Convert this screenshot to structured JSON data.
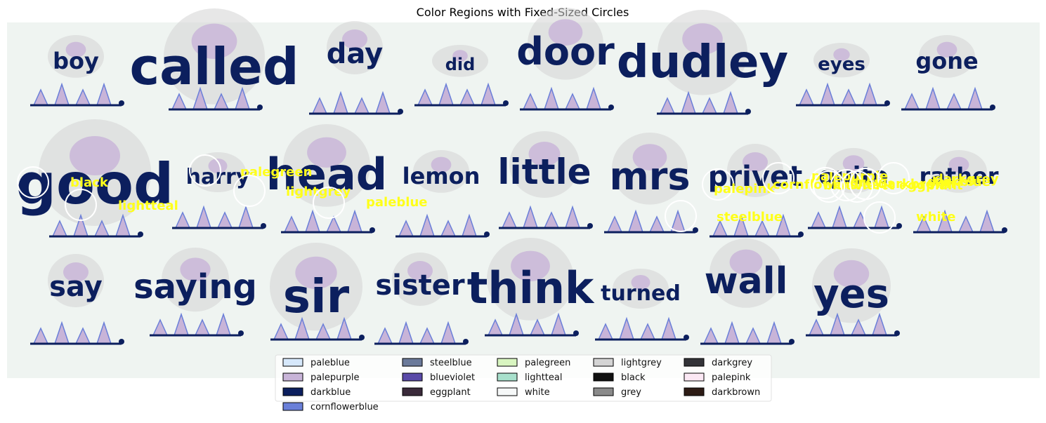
{
  "chart_data": {
    "type": "image-annotation",
    "title": "Color Regions with Fixed-Sized Circles",
    "words": [
      {
        "text": "boy",
        "row": 0
      },
      {
        "text": "called",
        "row": 0
      },
      {
        "text": "day",
        "row": 0
      },
      {
        "text": "did",
        "row": 0
      },
      {
        "text": "door",
        "row": 0
      },
      {
        "text": "dudley",
        "row": 0
      },
      {
        "text": "eyes",
        "row": 0
      },
      {
        "text": "gone",
        "row": 0
      },
      {
        "text": "good",
        "row": 1
      },
      {
        "text": "harry",
        "row": 1
      },
      {
        "text": "head",
        "row": 1
      },
      {
        "text": "lemon",
        "row": 1
      },
      {
        "text": "little",
        "row": 1
      },
      {
        "text": "mrs",
        "row": 1
      },
      {
        "text": "privet",
        "row": 1
      },
      {
        "text": "quite",
        "row": 1
      },
      {
        "text": "rather",
        "row": 1
      },
      {
        "text": "say",
        "row": 2
      },
      {
        "text": "saying",
        "row": 2
      },
      {
        "text": "sir",
        "row": 2
      },
      {
        "text": "sister",
        "row": 2
      },
      {
        "text": "think",
        "row": 2
      },
      {
        "text": "turned",
        "row": 2
      },
      {
        "text": "wall",
        "row": 2
      },
      {
        "text": "yes",
        "row": 2
      }
    ],
    "circle_labels": [
      "black",
      "lightteal",
      "palegreen",
      "lightgrey",
      "paleblue",
      "palepink",
      "cornflowerblue",
      "steelblue",
      "palepurple",
      "blueviolet",
      "eggplant",
      "darkblue",
      "darkgrey",
      "grey",
      "darkbrown",
      "white"
    ],
    "legend": {
      "columns": [
        [
          "paleblue",
          "palepurple",
          "darkblue",
          "cornflowerblue"
        ],
        [
          "steelblue",
          "blueviolet",
          "eggplant"
        ],
        [
          "palegreen",
          "lightteal",
          "white"
        ],
        [
          "lightgrey",
          "black",
          "grey"
        ],
        [
          "darkgrey",
          "palepink",
          "darkbrown"
        ]
      ],
      "colors": {
        "paleblue": "#d6e8fb",
        "palepurple": "#c8b4d8",
        "darkblue": "#0c1f5e",
        "cornflowerblue": "#6a7fd8",
        "steelblue": "#6b7a9a",
        "blueviolet": "#5a4aa8",
        "eggplant": "#3a2a3a",
        "palegreen": "#d8f5c0",
        "lightteal": "#a8e0cc",
        "white": "#f6f8f8",
        "lightgrey": "#d4d4d4",
        "black": "#111111",
        "grey": "#8a8a8a",
        "darkgrey": "#333338",
        "palepink": "#fbe8f4",
        "darkbrown": "#2e1c16"
      }
    },
    "background_color": "#eff4f1",
    "label_color": "#ffff1a"
  }
}
